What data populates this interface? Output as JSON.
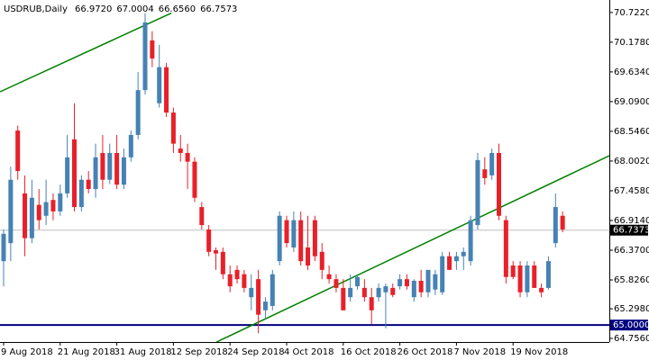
{
  "chart_data": {
    "type": "candlestick",
    "title": "USDRUB,Daily",
    "info": [
      "66.9720",
      "67.0004",
      "66.6560",
      "66.7573"
    ],
    "categories": [
      "9 Aug 2018",
      null,
      null,
      null,
      null,
      null,
      null,
      null,
      "21 Aug 2018",
      null,
      null,
      null,
      null,
      null,
      null,
      null,
      "31 Aug 2018",
      null,
      null,
      null,
      null,
      null,
      null,
      null,
      "12 Sep 2018",
      null,
      null,
      null,
      null,
      null,
      null,
      null,
      "24 Sep 2018",
      null,
      null,
      null,
      null,
      null,
      null,
      null,
      "4 Oct 2018",
      null,
      null,
      null,
      null,
      null,
      null,
      null,
      "16 Oct 2018",
      null,
      null,
      null,
      null,
      null,
      null,
      null,
      "26 Oct 2018",
      null,
      null,
      null,
      null,
      null,
      null,
      null,
      "7 Nov 2018",
      null,
      null,
      null,
      null,
      null,
      null,
      null,
      "19 Nov 2018",
      null,
      null,
      null,
      null,
      null,
      null,
      null
    ],
    "open": [
      66.17,
      66.5,
      68.56,
      67.41,
      66.59,
      67.2,
      67.0,
      67.29,
      67.08,
      67.41,
      68.4,
      67.16,
      67.66,
      67.49,
      68.15,
      67.66,
      68.15,
      67.57,
      68.07,
      68.48,
      69.3,
      70.21,
      69.06,
      69.72,
      68.89,
      68.23,
      68.15,
      67.99,
      67.16,
      66.75,
      66.37,
      66.34,
      65.93,
      66.01,
      65.93,
      65.51,
      65.84,
      65.27,
      65.35,
      66.17,
      66.92,
      66.42,
      66.92,
      66.42,
      66.92,
      66.34,
      65.93,
      65.84,
      65.68,
      65.51,
      65.71,
      65.68,
      65.51,
      65.51,
      65.6,
      65.68,
      65.71,
      65.84,
      65.51,
      65.81,
      65.6,
      65.65,
      65.6,
      66.26,
      66.17,
      66.26,
      66.17,
      66.83,
      67.85,
      67.74,
      68.15,
      66.92,
      66.09,
      66.09,
      65.6,
      66.09,
      65.68,
      65.68,
      66.5,
      67.0
    ],
    "high": [
      66.75,
      67.9,
      68.65,
      67.74,
      67.66,
      67.49,
      67.66,
      67.41,
      67.57,
      68.48,
      69.06,
      67.74,
      67.82,
      68.32,
      68.48,
      68.32,
      68.48,
      68.23,
      68.56,
      69.63,
      70.71,
      70.38,
      70.13,
      69.8,
      68.98,
      68.48,
      68.32,
      68.07,
      67.25,
      66.83,
      66.42,
      66.42,
      66.09,
      66.09,
      66.01,
      65.93,
      66.01,
      65.51,
      66.01,
      67.08,
      67.0,
      67.08,
      67.08,
      67.0,
      67.0,
      66.5,
      66.09,
      65.93,
      65.84,
      65.93,
      65.93,
      65.84,
      65.68,
      65.76,
      65.76,
      65.76,
      65.93,
      65.93,
      65.84,
      66.01,
      66.01,
      66.01,
      66.34,
      66.34,
      66.34,
      66.42,
      67.0,
      68.15,
      68.07,
      68.23,
      68.32,
      67.0,
      66.17,
      66.17,
      66.17,
      66.17,
      65.76,
      66.26,
      67.41,
      67.08
    ],
    "low": [
      65.71,
      66.17,
      67.66,
      66.26,
      66.5,
      66.75,
      66.83,
      66.92,
      67.0,
      67.33,
      67.08,
      67.08,
      67.41,
      67.33,
      67.49,
      67.58,
      67.49,
      67.49,
      67.99,
      68.4,
      69.22,
      69.72,
      68.98,
      68.81,
      68.15,
      67.99,
      67.49,
      67.25,
      66.75,
      66.26,
      66.01,
      65.84,
      65.6,
      65.76,
      65.6,
      65.27,
      64.85,
      65.1,
      65.27,
      66.09,
      66.42,
      66.34,
      66.09,
      66.01,
      66.17,
      65.84,
      65.76,
      65.6,
      65.27,
      65.43,
      65.65,
      65.43,
      65.02,
      65.43,
      64.94,
      65.51,
      65.65,
      65.65,
      65.43,
      65.51,
      65.51,
      65.55,
      65.55,
      66.01,
      66.01,
      66.01,
      66.09,
      66.75,
      67.57,
      67.66,
      66.92,
      65.76,
      65.84,
      65.51,
      65.51,
      65.68,
      65.51,
      65.65,
      66.42,
      66.7
    ],
    "close": [
      66.67,
      67.66,
      67.82,
      66.59,
      67.33,
      66.92,
      67.25,
      67.08,
      67.41,
      68.07,
      67.16,
      67.66,
      67.49,
      68.07,
      67.66,
      68.15,
      67.57,
      68.07,
      68.48,
      69.3,
      70.54,
      69.88,
      69.72,
      68.89,
      68.32,
      68.15,
      67.99,
      67.33,
      66.83,
      66.34,
      66.31,
      65.93,
      65.71,
      65.84,
      65.68,
      65.68,
      65.19,
      65.43,
      65.93,
      67.0,
      66.5,
      66.92,
      66.17,
      66.09,
      66.26,
      66.01,
      65.84,
      65.68,
      65.27,
      65.68,
      65.88,
      65.51,
      65.27,
      65.68,
      65.71,
      65.55,
      65.84,
      65.71,
      65.81,
      65.6,
      66.01,
      65.93,
      66.26,
      66.01,
      66.26,
      66.34,
      66.92,
      68.02,
      67.69,
      68.15,
      67.0,
      65.88,
      65.88,
      65.6,
      66.09,
      65.68,
      65.6,
      66.17,
      67.16,
      66.75
    ],
    "up_color": "#4682b4",
    "down_color": "#e8202a",
    "ylim": [
      64.69,
      70.95
    ],
    "yticks": [
      {
        "value": 70.722,
        "label": "70.7220"
      },
      {
        "value": 70.178,
        "label": "70.1780"
      },
      {
        "value": 69.634,
        "label": "69.6340"
      },
      {
        "value": 69.09,
        "label": "69.0900"
      },
      {
        "value": 68.546,
        "label": "68.5460"
      },
      {
        "value": 68.002,
        "label": "68.0020"
      },
      {
        "value": 67.458,
        "label": "67.4580"
      },
      {
        "value": 66.914,
        "label": "66.9140"
      },
      {
        "value": 66.37,
        "label": "66.3700"
      },
      {
        "value": 65.826,
        "label": "65.8260"
      },
      {
        "value": 65.298,
        "label": "65.2980"
      },
      {
        "value": 64.756,
        "label": "64.7560"
      }
    ],
    "trendlines": [
      {
        "color": "#008000",
        "x": [
          -0.5,
          23.7
        ],
        "y": [
          69.27,
          70.71
        ]
      },
      {
        "color": "#008000",
        "x": [
          30.1,
          85.6
        ],
        "y": [
          64.69,
          68.1
        ]
      }
    ],
    "hlines": [
      {
        "value": 65,
        "label": "65.0000",
        "color": "#000080"
      },
      {
        "value": 66.7373,
        "label": "66.7373",
        "color": "#c0c0c0"
      }
    ]
  }
}
